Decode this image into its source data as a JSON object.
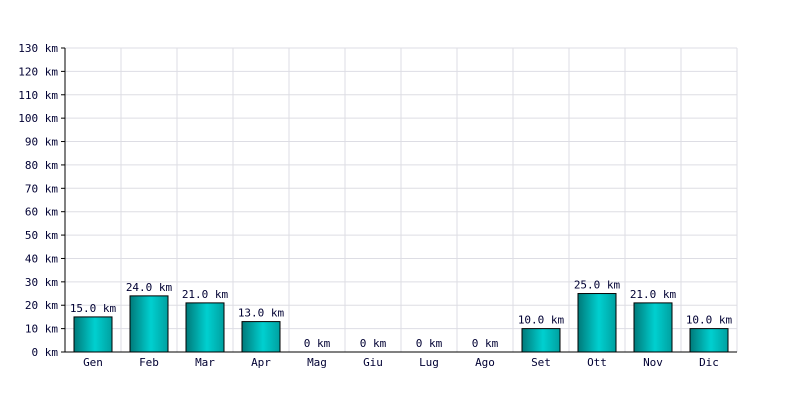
{
  "chart_data": {
    "type": "bar",
    "categories": [
      "Gen",
      "Feb",
      "Mar",
      "Apr",
      "Mag",
      "Giu",
      "Lug",
      "Ago",
      "Set",
      "Ott",
      "Nov",
      "Dic"
    ],
    "values": [
      15,
      24,
      21,
      13,
      0,
      0,
      0,
      0,
      10,
      25,
      21,
      10
    ],
    "value_labels": [
      "15.0 km",
      "24.0 km",
      "21.0 km",
      "13.0 km",
      "0 km",
      "0 km",
      "0 km",
      "0 km",
      "10.0 km",
      "25.0 km",
      "21.0 km",
      "10.0 km"
    ],
    "color": "#00d0d0",
    "ylim": [
      0,
      130
    ],
    "yticks": [
      {
        "value": 0,
        "label": "0 km"
      },
      {
        "value": 10,
        "label": "10 km"
      },
      {
        "value": 20,
        "label": "20 km"
      },
      {
        "value": 30,
        "label": "30 km"
      },
      {
        "value": 40,
        "label": "40 km"
      },
      {
        "value": 50,
        "label": "50 km"
      },
      {
        "value": 60,
        "label": "60 km"
      },
      {
        "value": 70,
        "label": "70 km"
      },
      {
        "value": 80,
        "label": "80 km"
      },
      {
        "value": 90,
        "label": "90 km"
      },
      {
        "value": 100,
        "label": "100 km"
      },
      {
        "value": 110,
        "label": "110 km"
      },
      {
        "value": 120,
        "label": "120 km"
      },
      {
        "value": 130,
        "label": "130 km"
      }
    ],
    "grid": true
  }
}
